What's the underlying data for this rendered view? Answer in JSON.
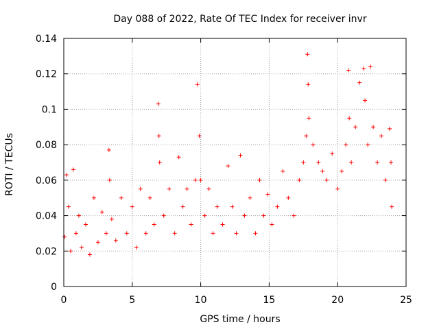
{
  "chart_data": {
    "type": "scatter",
    "title": "Day 088 of 2022, Rate Of TEC Index for receiver invr",
    "xlabel": "GPS time / hours",
    "ylabel": "ROTI / TECUs",
    "xlim": [
      0,
      25
    ],
    "ylim": [
      0,
      0.14
    ],
    "x_ticks": [
      "0",
      "5",
      "10",
      "15",
      "20",
      "25"
    ],
    "y_ticks": [
      "0",
      "0.02",
      "0.04",
      "0.06",
      "0.08",
      "0.1",
      "0.12",
      "0.14"
    ],
    "x_tick_values": [
      0,
      5,
      10,
      15,
      20,
      25
    ],
    "y_tick_values": [
      0,
      0.02,
      0.04,
      0.06,
      0.08,
      0.1,
      0.12,
      0.14
    ],
    "grid": true,
    "marker": "+",
    "color": "#ff0000",
    "series": [
      {
        "name": "ROTI",
        "x": [
          0.05,
          0.2,
          0.35,
          0.5,
          0.7,
          0.9,
          1.1,
          1.3,
          1.6,
          1.9,
          2.2,
          2.5,
          2.8,
          3.1,
          3.3,
          3.35,
          3.5,
          3.8,
          4.2,
          4.6,
          5.0,
          5.3,
          5.6,
          6.0,
          6.3,
          6.6,
          6.9,
          6.95,
          7.0,
          7.3,
          7.7,
          8.1,
          8.4,
          8.7,
          9.0,
          9.3,
          9.6,
          9.75,
          9.9,
          10.0,
          10.3,
          10.6,
          10.9,
          11.2,
          11.6,
          12.0,
          12.3,
          12.6,
          12.9,
          13.2,
          13.6,
          14.0,
          14.3,
          14.6,
          14.9,
          15.2,
          15.6,
          16.0,
          16.4,
          16.8,
          17.2,
          17.5,
          17.7,
          17.8,
          17.85,
          17.9,
          18.2,
          18.6,
          18.9,
          19.2,
          19.6,
          20.0,
          20.3,
          20.6,
          20.8,
          20.85,
          21.0,
          21.3,
          21.6,
          21.9,
          22.0,
          22.2,
          22.4,
          22.6,
          22.9,
          23.2,
          23.5,
          23.8,
          23.9,
          23.95
        ],
        "y": [
          0.028,
          0.063,
          0.045,
          0.02,
          0.066,
          0.03,
          0.04,
          0.022,
          0.035,
          0.018,
          0.05,
          0.025,
          0.042,
          0.03,
          0.077,
          0.06,
          0.038,
          0.026,
          0.05,
          0.03,
          0.045,
          0.022,
          0.055,
          0.03,
          0.05,
          0.035,
          0.103,
          0.085,
          0.07,
          0.04,
          0.055,
          0.03,
          0.073,
          0.045,
          0.055,
          0.035,
          0.06,
          0.114,
          0.085,
          0.06,
          0.04,
          0.055,
          0.03,
          0.045,
          0.035,
          0.068,
          0.045,
          0.03,
          0.074,
          0.04,
          0.05,
          0.03,
          0.06,
          0.04,
          0.052,
          0.035,
          0.045,
          0.065,
          0.05,
          0.04,
          0.06,
          0.07,
          0.085,
          0.131,
          0.114,
          0.095,
          0.08,
          0.07,
          0.065,
          0.06,
          0.075,
          0.055,
          0.065,
          0.08,
          0.122,
          0.095,
          0.07,
          0.09,
          0.115,
          0.123,
          0.105,
          0.08,
          0.124,
          0.09,
          0.07,
          0.085,
          0.06,
          0.089,
          0.07,
          0.045
        ]
      }
    ]
  }
}
